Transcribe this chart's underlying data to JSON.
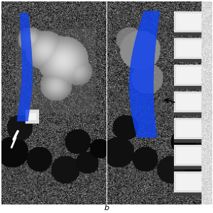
{
  "background_color": "#ffffff",
  "blue_color": "#1144ee",
  "label_b": "b",
  "label_fontsize": 8,
  "fig_width": 3.0,
  "fig_height": 3.0,
  "dpi": 100
}
